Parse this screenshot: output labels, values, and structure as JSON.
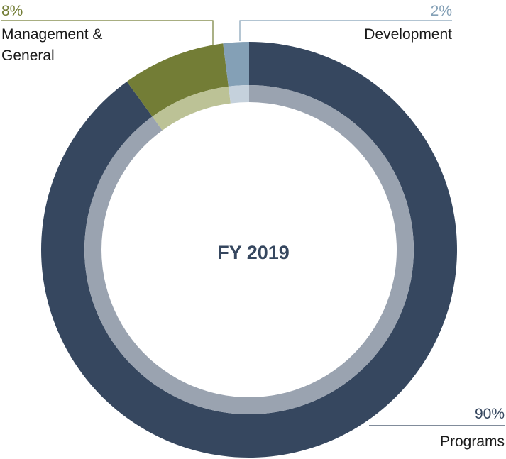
{
  "chart_data": {
    "type": "pie",
    "title": "FY 2019",
    "slices": [
      {
        "label": "Programs",
        "value": 90,
        "pct_text": "90%",
        "color": "#36475f",
        "inner_color": "#9aa3b0"
      },
      {
        "label": "Management & General",
        "label_lines": [
          "Management &",
          "General"
        ],
        "value": 8,
        "pct_text": "8%",
        "color": "#737d36",
        "inner_color": "#bcc296"
      },
      {
        "label": "Development",
        "value": 2,
        "pct_text": "2%",
        "color": "#84a0b6",
        "inner_color": "#c5d1dc"
      }
    ],
    "title_color": "#36475f"
  }
}
